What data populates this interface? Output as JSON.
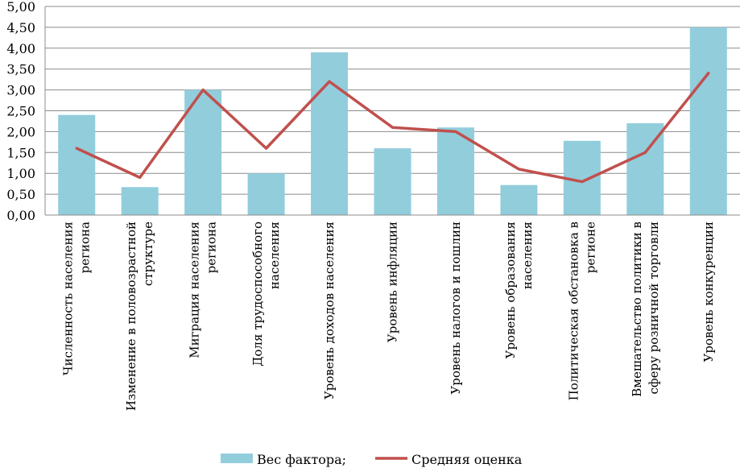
{
  "chart_data": {
    "type": "bar",
    "categories": [
      [
        "Численность населения",
        "региона"
      ],
      [
        "Изменение в половозрастной",
        "структуре"
      ],
      [
        "Миграция населения",
        "региона"
      ],
      [
        "Доля трудоспособного",
        "населения"
      ],
      [
        "Уровень доходов населения"
      ],
      [
        "Уровень инфляции"
      ],
      [
        "Уровень налогов и пошлин"
      ],
      [
        "Уровень образования",
        "населения"
      ],
      [
        "Политическая обстановка в",
        "регионе"
      ],
      [
        "Вмешательство политики в",
        "сферу розничной торговли"
      ],
      [
        "Уровень конкуренции"
      ]
    ],
    "series": [
      {
        "name": "Вес фактора;",
        "kind": "bar",
        "color": "#92CDDC",
        "values": [
          2.4,
          0.67,
          3.0,
          1.0,
          3.9,
          1.6,
          2.1,
          0.72,
          1.78,
          2.2,
          4.5
        ]
      },
      {
        "name": "Средняя оценка",
        "kind": "line",
        "color": "#C0504D",
        "values": [
          1.6,
          0.9,
          3.0,
          1.6,
          3.2,
          2.1,
          2.0,
          1.1,
          0.8,
          1.5,
          3.4
        ]
      }
    ],
    "ylim": [
      0,
      5
    ],
    "yticks": [
      "0,00",
      "0,50",
      "1,00",
      "1,50",
      "2,00",
      "2,50",
      "3,00",
      "3,50",
      "4,00",
      "4,50",
      "5,00"
    ],
    "grid": true,
    "legend": "bottom"
  }
}
